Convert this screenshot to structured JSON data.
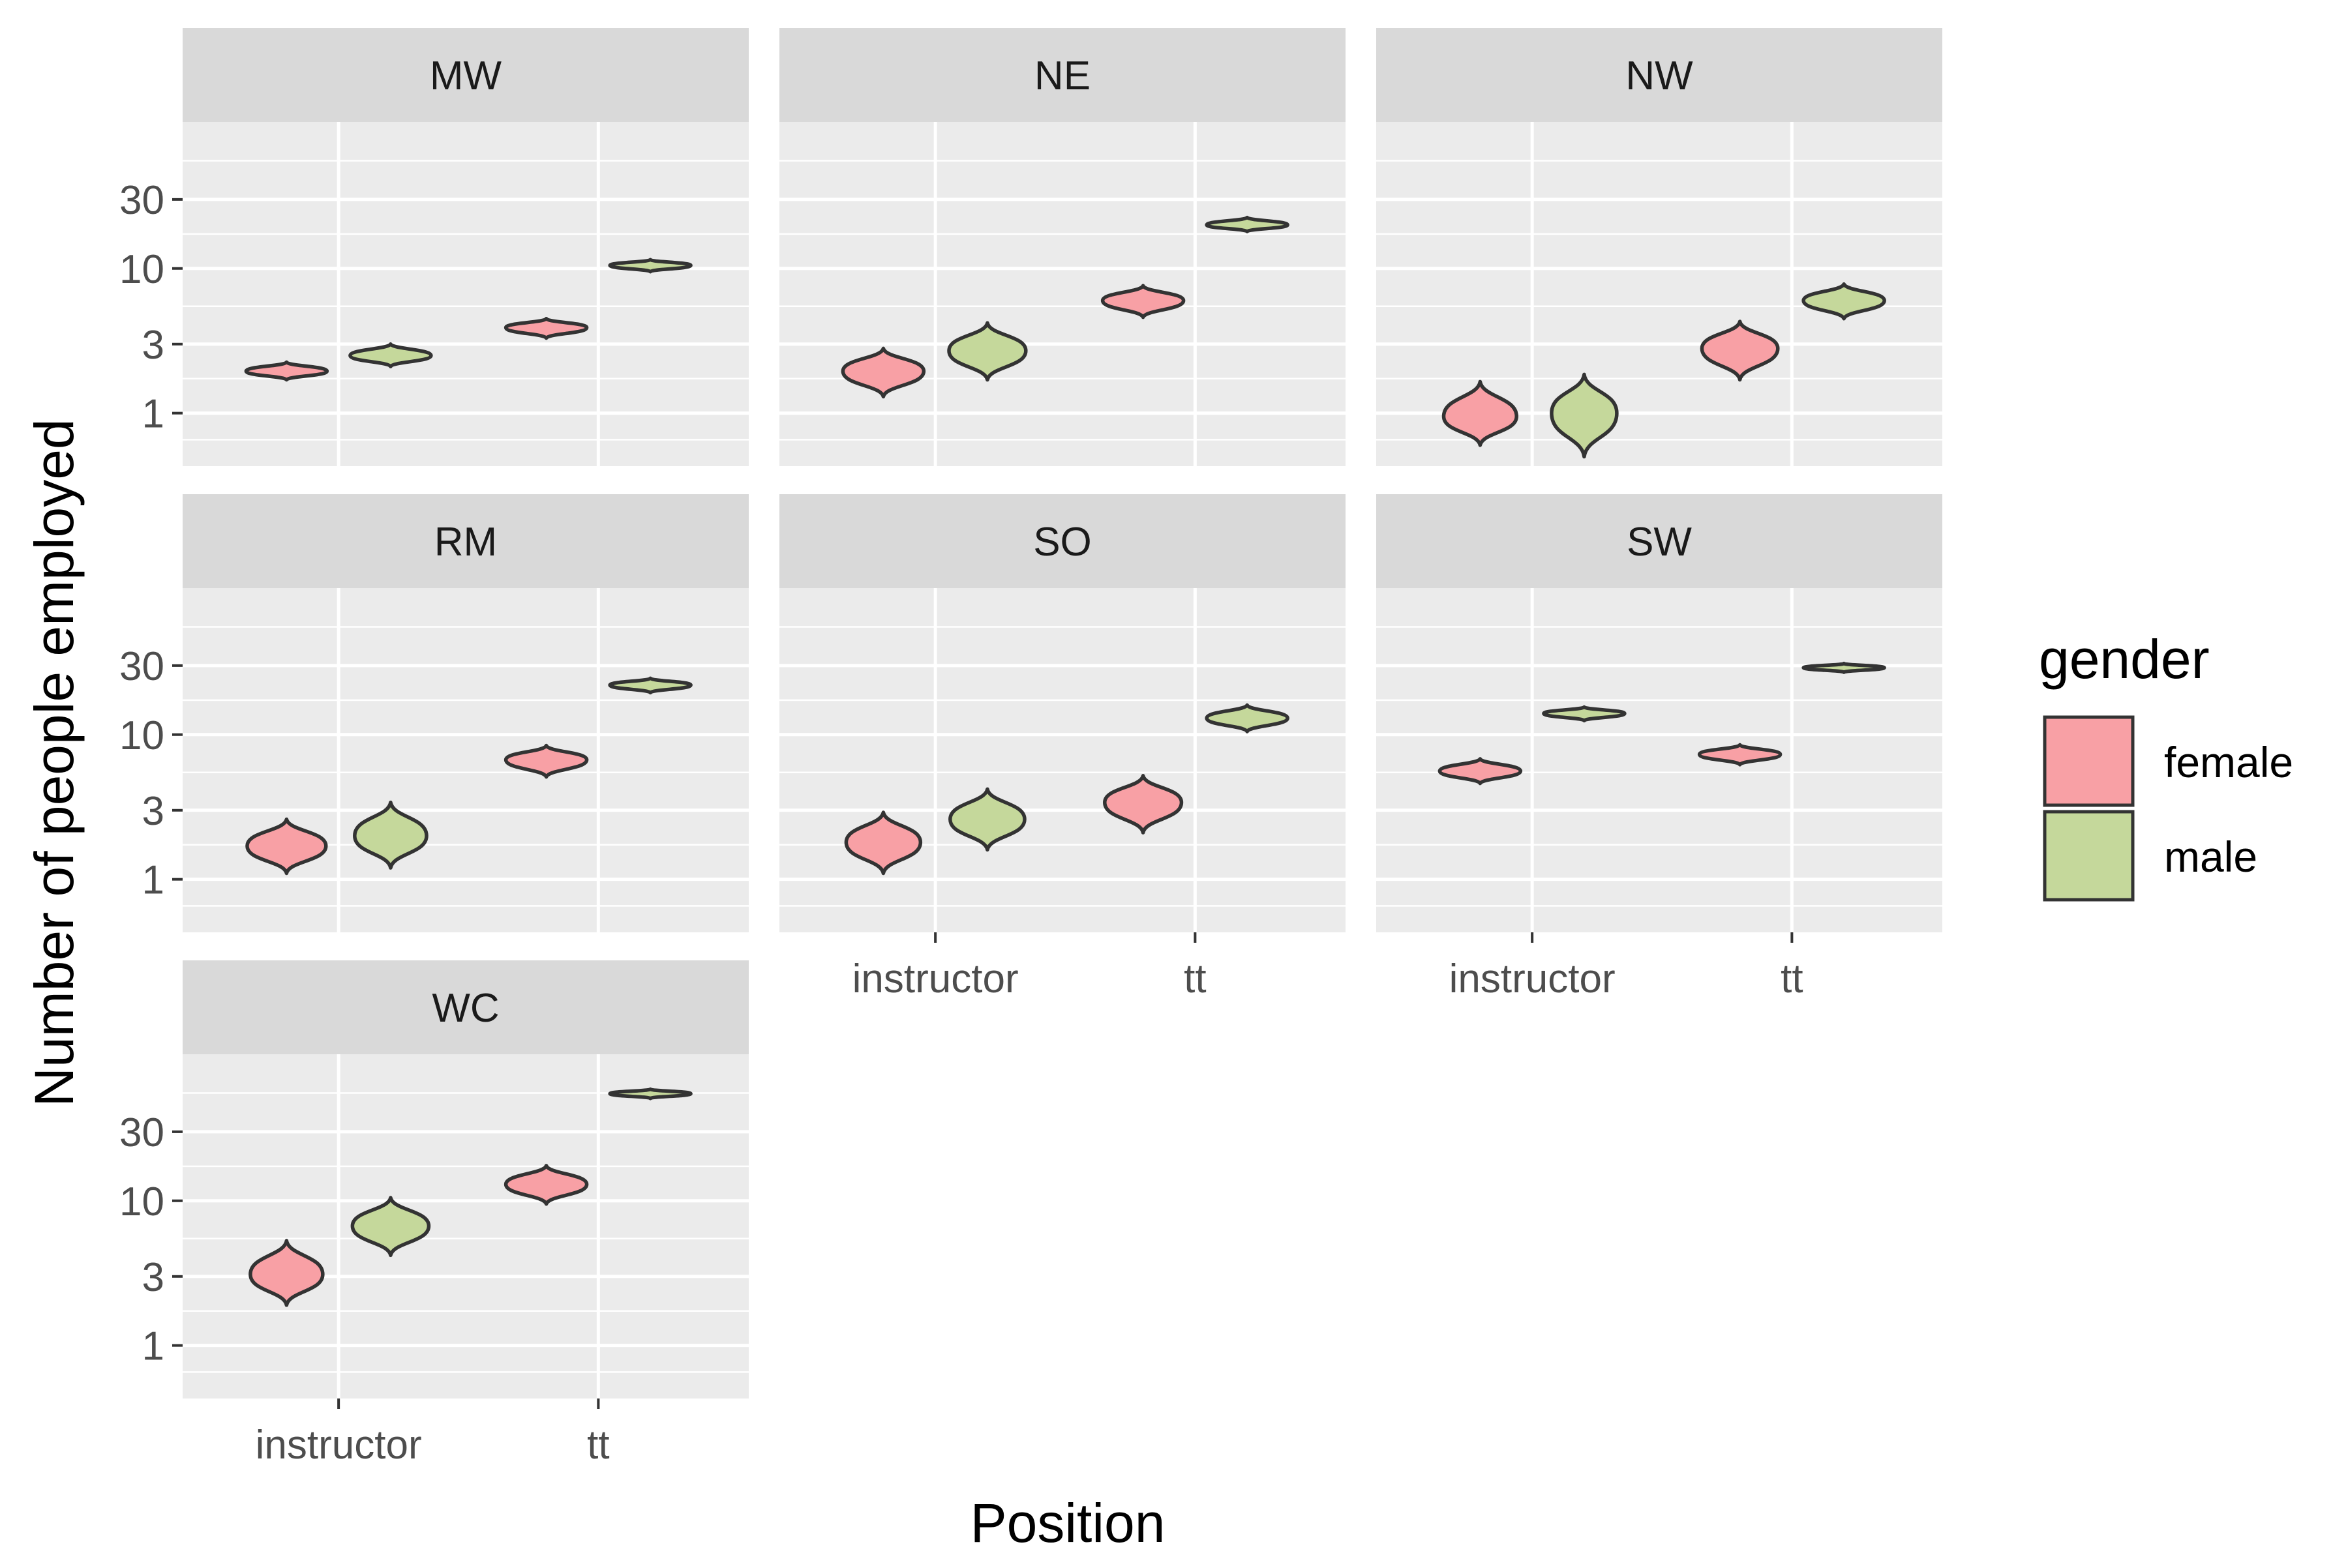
{
  "chart_data": {
    "type": "violin",
    "xlabel": "Position",
    "ylabel": "Number of people employed",
    "y_scale": "log10",
    "y_ticks": [
      1,
      3,
      10,
      30
    ],
    "y_tick_labels": [
      "1",
      "3",
      "10",
      "30"
    ],
    "ylim": [
      0.43,
      103
    ],
    "x_ticks": [
      "instructor",
      "tt"
    ],
    "legend": {
      "title": "gender",
      "position": "right",
      "entries": [
        {
          "label": "female",
          "color": "#f8a0a5"
        },
        {
          "label": "male",
          "color": "#c5d89b"
        }
      ]
    },
    "panels": [
      {
        "label": "MW",
        "violins": [
          {
            "position": "instructor",
            "gender": "female",
            "median": 1.95,
            "min": 1.7,
            "max": 2.25
          },
          {
            "position": "instructor",
            "gender": "male",
            "median": 2.5,
            "min": 2.1,
            "max": 3.0
          },
          {
            "position": "tt",
            "gender": "female",
            "median": 3.9,
            "min": 3.3,
            "max": 4.5
          },
          {
            "position": "tt",
            "gender": "male",
            "median": 10.5,
            "min": 9.5,
            "max": 11.5
          }
        ]
      },
      {
        "label": "NE",
        "violins": [
          {
            "position": "instructor",
            "gender": "female",
            "median": 1.95,
            "min": 1.3,
            "max": 2.8
          },
          {
            "position": "instructor",
            "gender": "male",
            "median": 2.7,
            "min": 1.7,
            "max": 4.2
          },
          {
            "position": "tt",
            "gender": "female",
            "median": 6.0,
            "min": 4.6,
            "max": 7.6
          },
          {
            "position": "tt",
            "gender": "male",
            "median": 20.0,
            "min": 18.0,
            "max": 22.5
          }
        ]
      },
      {
        "label": "NW",
        "violins": [
          {
            "position": "instructor",
            "gender": "female",
            "median": 0.95,
            "min": 0.6,
            "max": 1.65
          },
          {
            "position": "instructor",
            "gender": "male",
            "median": 1.0,
            "min": 0.5,
            "max": 1.85
          },
          {
            "position": "tt",
            "gender": "female",
            "median": 2.8,
            "min": 1.7,
            "max": 4.3
          },
          {
            "position": "tt",
            "gender": "male",
            "median": 6.0,
            "min": 4.5,
            "max": 7.8
          }
        ]
      },
      {
        "label": "RM",
        "violins": [
          {
            "position": "instructor",
            "gender": "female",
            "median": 1.7,
            "min": 1.1,
            "max": 2.6
          },
          {
            "position": "instructor",
            "gender": "male",
            "median": 2.0,
            "min": 1.2,
            "max": 3.4
          },
          {
            "position": "tt",
            "gender": "female",
            "median": 6.7,
            "min": 5.1,
            "max": 8.4
          },
          {
            "position": "tt",
            "gender": "male",
            "median": 22.0,
            "min": 19.5,
            "max": 24.5
          }
        ]
      },
      {
        "label": "SO",
        "violins": [
          {
            "position": "instructor",
            "gender": "female",
            "median": 1.8,
            "min": 1.1,
            "max": 2.9
          },
          {
            "position": "instructor",
            "gender": "male",
            "median": 2.6,
            "min": 1.6,
            "max": 4.2
          },
          {
            "position": "tt",
            "gender": "female",
            "median": 3.4,
            "min": 2.1,
            "max": 5.2
          },
          {
            "position": "tt",
            "gender": "male",
            "median": 13.0,
            "min": 10.5,
            "max": 16.0
          }
        ]
      },
      {
        "label": "SW",
        "violins": [
          {
            "position": "instructor",
            "gender": "female",
            "median": 5.6,
            "min": 4.6,
            "max": 6.8
          },
          {
            "position": "instructor",
            "gender": "male",
            "median": 14.0,
            "min": 12.5,
            "max": 15.5
          },
          {
            "position": "tt",
            "gender": "female",
            "median": 7.3,
            "min": 6.2,
            "max": 8.5
          },
          {
            "position": "tt",
            "gender": "male",
            "median": 29.0,
            "min": 27.0,
            "max": 31.0
          }
        ]
      },
      {
        "label": "WC",
        "violins": [
          {
            "position": "instructor",
            "gender": "female",
            "median": 3.1,
            "min": 1.9,
            "max": 5.3
          },
          {
            "position": "instructor",
            "gender": "male",
            "median": 6.7,
            "min": 4.2,
            "max": 10.5
          },
          {
            "position": "tt",
            "gender": "female",
            "median": 13.0,
            "min": 9.5,
            "max": 17.5
          },
          {
            "position": "tt",
            "gender": "male",
            "median": 55.0,
            "min": 51.0,
            "max": 59.0
          }
        ]
      }
    ]
  }
}
